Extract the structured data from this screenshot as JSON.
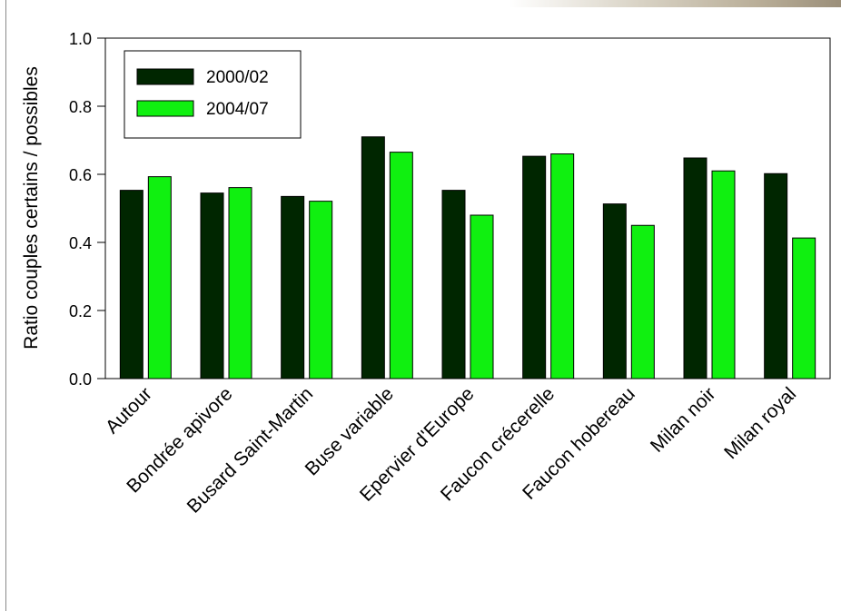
{
  "chart_data": {
    "type": "bar",
    "title": "",
    "xlabel": "",
    "ylabel": "Ratio couples certains / possibles",
    "ylim": [
      0,
      1.0
    ],
    "yticks": [
      "0.0",
      "0.2",
      "0.4",
      "0.6",
      "0.8",
      "1.0"
    ],
    "categories": [
      "Autour",
      "Bondrée apivore",
      "Busard Saint-Martin",
      "Buse variable",
      "Epervier d'Europe",
      "Faucon crécerelle",
      "Faucon hobereau",
      "Milan noir",
      "Milan royal"
    ],
    "series": [
      {
        "name": "2000/02",
        "color": "#002600",
        "values": [
          0.553,
          0.545,
          0.535,
          0.71,
          0.553,
          0.653,
          0.513,
          0.648,
          0.602
        ]
      },
      {
        "name": "2004/07",
        "color": "#10f010",
        "values": [
          0.593,
          0.561,
          0.521,
          0.665,
          0.48,
          0.66,
          0.45,
          0.61,
          0.413
        ]
      }
    ],
    "grid": false,
    "legend_position": "top-left"
  }
}
